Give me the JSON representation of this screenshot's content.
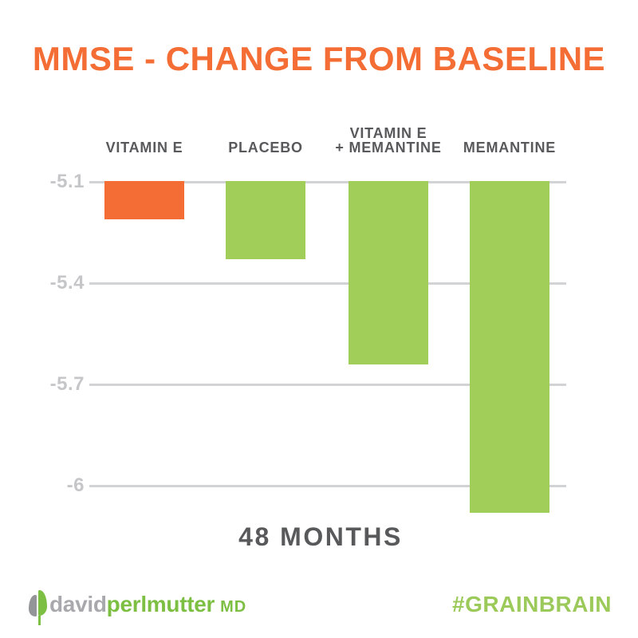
{
  "chart_data": {
    "type": "bar",
    "orientation": "vertical",
    "bar_direction": "down-from-top-axis",
    "title": "MMSE - CHANGE FROM BASELINE",
    "title_color": "#F36D35",
    "categories": [
      "VITAMIN E",
      "PLACEBO",
      "VITAMIN E\n+ MEMANTINE",
      "MEMANTINE"
    ],
    "values": [
      -5.21,
      -5.33,
      -5.64,
      -6.08
    ],
    "bar_colors": [
      "#F36D35",
      "#A0CE58",
      "#A0CE58",
      "#A0CE58"
    ],
    "yticks": [
      -5.1,
      -5.4,
      -5.7,
      -6
    ],
    "ytick_labels": [
      "-5.1",
      "-5.4",
      "-5.7",
      "-6"
    ],
    "ylim": [
      -5.1,
      -6.18
    ],
    "xlabel": "48 MONTHS",
    "grid": "horizontal",
    "gridline_color": "#D2D3D5",
    "legend": "none"
  },
  "footer": {
    "brand": {
      "part1": "david",
      "part2": "perlmutter",
      "suffix": "MD",
      "gray_color": "#A7A9AC",
      "green_color": "#7CBF43"
    },
    "hashtag": {
      "text": "#GRAINBRAIN",
      "color": "#9CCA5A"
    }
  }
}
